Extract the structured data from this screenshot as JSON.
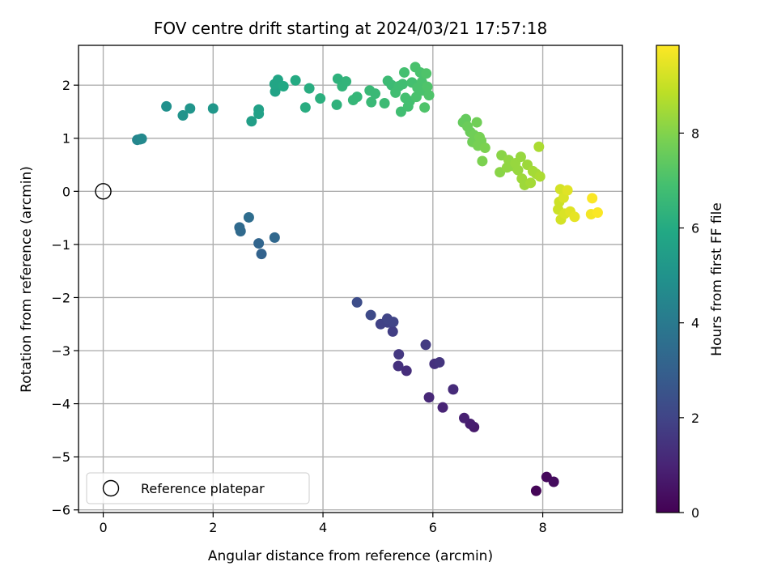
{
  "chart_data": {
    "type": "scatter",
    "title": "FOV centre drift starting at 2024/03/21 17:57:18",
    "xlabel": "Angular distance from reference (arcmin)",
    "ylabel": "Rotation from reference (arcmin)",
    "xlim": [
      -0.45,
      9.45
    ],
    "ylim": [
      -6.05,
      2.75
    ],
    "xticks": [
      0,
      2,
      4,
      6,
      8
    ],
    "yticks": [
      -6,
      -5,
      -4,
      -3,
      -2,
      -1,
      0,
      1,
      2
    ],
    "xtick_labels": [
      "0",
      "2",
      "4",
      "6",
      "8"
    ],
    "ytick_labels": [
      "−6",
      "−5",
      "−4",
      "−3",
      "−2",
      "−1",
      "0",
      "1",
      "2"
    ],
    "grid": true,
    "colormap": "viridis",
    "colorbar": {
      "label": "Hours from first FF file",
      "range": [
        0,
        9.85
      ],
      "ticks": [
        0,
        2,
        4,
        6,
        8
      ],
      "tick_labels": [
        "0",
        "2",
        "4",
        "6",
        "8"
      ]
    },
    "legend": {
      "position": "lower-left",
      "entries": [
        "Reference platepar"
      ]
    },
    "reference_point": {
      "x": 0,
      "y": 0,
      "marker": "open-circle",
      "name": "Reference platepar"
    },
    "series": [
      {
        "points": [
          {
            "x": 7.88,
            "y": -5.64,
            "hours": 0.1
          },
          {
            "x": 8.07,
            "y": -5.38,
            "hours": 0.2
          },
          {
            "x": 8.2,
            "y": -5.47,
            "hours": 0.3
          },
          {
            "x": 6.75,
            "y": -4.44,
            "hours": 0.7
          },
          {
            "x": 6.68,
            "y": -4.38,
            "hours": 0.8
          },
          {
            "x": 6.57,
            "y": -4.27,
            "hours": 0.9
          },
          {
            "x": 6.18,
            "y": -4.07,
            "hours": 1.0
          },
          {
            "x": 5.93,
            "y": -3.88,
            "hours": 1.1
          },
          {
            "x": 6.37,
            "y": -3.73,
            "hours": 1.2
          },
          {
            "x": 5.52,
            "y": -3.38,
            "hours": 1.3
          },
          {
            "x": 5.37,
            "y": -3.29,
            "hours": 1.4
          },
          {
            "x": 6.03,
            "y": -3.25,
            "hours": 1.4
          },
          {
            "x": 6.12,
            "y": -3.22,
            "hours": 1.5
          },
          {
            "x": 5.38,
            "y": -3.07,
            "hours": 1.6
          },
          {
            "x": 5.87,
            "y": -2.89,
            "hours": 1.7
          },
          {
            "x": 5.27,
            "y": -2.64,
            "hours": 1.8
          },
          {
            "x": 5.05,
            "y": -2.5,
            "hours": 1.9
          },
          {
            "x": 5.18,
            "y": -2.47,
            "hours": 1.9
          },
          {
            "x": 5.28,
            "y": -2.46,
            "hours": 2.0
          },
          {
            "x": 5.17,
            "y": -2.4,
            "hours": 2.0
          },
          {
            "x": 4.87,
            "y": -2.33,
            "hours": 2.2
          },
          {
            "x": 4.62,
            "y": -2.09,
            "hours": 2.3
          },
          {
            "x": 2.88,
            "y": -1.18,
            "hours": 3.1
          },
          {
            "x": 2.83,
            "y": -0.98,
            "hours": 3.2
          },
          {
            "x": 3.12,
            "y": -0.87,
            "hours": 3.3
          },
          {
            "x": 2.5,
            "y": -0.75,
            "hours": 3.4
          },
          {
            "x": 2.48,
            "y": -0.68,
            "hours": 3.4
          },
          {
            "x": 2.65,
            "y": -0.49,
            "hours": 3.5
          },
          {
            "x": 0.62,
            "y": 0.97,
            "hours": 4.5
          },
          {
            "x": 0.67,
            "y": 0.98,
            "hours": 4.5
          },
          {
            "x": 0.7,
            "y": 0.99,
            "hours": 4.6
          },
          {
            "x": 1.15,
            "y": 1.6,
            "hours": 4.9
          },
          {
            "x": 1.45,
            "y": 1.43,
            "hours": 5.0
          },
          {
            "x": 1.58,
            "y": 1.56,
            "hours": 5.1
          },
          {
            "x": 2.0,
            "y": 1.56,
            "hours": 5.2
          },
          {
            "x": 2.7,
            "y": 1.32,
            "hours": 5.5
          },
          {
            "x": 2.83,
            "y": 1.46,
            "hours": 5.6
          },
          {
            "x": 2.83,
            "y": 1.54,
            "hours": 5.6
          },
          {
            "x": 3.13,
            "y": 1.88,
            "hours": 5.7
          },
          {
            "x": 3.12,
            "y": 2.02,
            "hours": 5.8
          },
          {
            "x": 3.18,
            "y": 2.1,
            "hours": 5.8
          },
          {
            "x": 3.28,
            "y": 1.98,
            "hours": 5.9
          },
          {
            "x": 3.5,
            "y": 2.09,
            "hours": 6.0
          },
          {
            "x": 3.68,
            "y": 1.58,
            "hours": 6.1
          },
          {
            "x": 3.75,
            "y": 1.94,
            "hours": 6.1
          },
          {
            "x": 3.95,
            "y": 1.75,
            "hours": 6.2
          },
          {
            "x": 4.25,
            "y": 1.63,
            "hours": 6.3
          },
          {
            "x": 4.27,
            "y": 2.12,
            "hours": 6.3
          },
          {
            "x": 4.35,
            "y": 1.98,
            "hours": 6.4
          },
          {
            "x": 4.42,
            "y": 2.07,
            "hours": 6.4
          },
          {
            "x": 4.55,
            "y": 1.72,
            "hours": 6.5
          },
          {
            "x": 4.62,
            "y": 1.78,
            "hours": 6.5
          },
          {
            "x": 4.85,
            "y": 1.9,
            "hours": 6.6
          },
          {
            "x": 4.88,
            "y": 1.68,
            "hours": 6.6
          },
          {
            "x": 4.95,
            "y": 1.84,
            "hours": 6.6
          },
          {
            "x": 5.12,
            "y": 1.66,
            "hours": 6.7
          },
          {
            "x": 5.18,
            "y": 2.08,
            "hours": 6.7
          },
          {
            "x": 5.25,
            "y": 2.0,
            "hours": 6.7
          },
          {
            "x": 5.32,
            "y": 1.86,
            "hours": 6.8
          },
          {
            "x": 5.38,
            "y": 1.98,
            "hours": 6.8
          },
          {
            "x": 5.42,
            "y": 1.5,
            "hours": 6.8
          },
          {
            "x": 5.45,
            "y": 2.02,
            "hours": 6.8
          },
          {
            "x": 5.48,
            "y": 2.24,
            "hours": 6.9
          },
          {
            "x": 5.5,
            "y": 1.76,
            "hours": 6.9
          },
          {
            "x": 5.55,
            "y": 1.6,
            "hours": 6.9
          },
          {
            "x": 5.58,
            "y": 1.7,
            "hours": 6.9
          },
          {
            "x": 5.62,
            "y": 2.05,
            "hours": 6.9
          },
          {
            "x": 5.68,
            "y": 2.34,
            "hours": 7.0
          },
          {
            "x": 5.7,
            "y": 1.78,
            "hours": 7.0
          },
          {
            "x": 5.72,
            "y": 1.95,
            "hours": 7.0
          },
          {
            "x": 5.77,
            "y": 2.24,
            "hours": 7.0
          },
          {
            "x": 5.8,
            "y": 2.06,
            "hours": 7.0
          },
          {
            "x": 5.82,
            "y": 1.9,
            "hours": 7.0
          },
          {
            "x": 5.85,
            "y": 1.58,
            "hours": 7.1
          },
          {
            "x": 5.88,
            "y": 2.22,
            "hours": 7.1
          },
          {
            "x": 5.9,
            "y": 1.97,
            "hours": 7.1
          },
          {
            "x": 5.93,
            "y": 1.81,
            "hours": 7.1
          },
          {
            "x": 6.55,
            "y": 1.3,
            "hours": 7.5
          },
          {
            "x": 6.6,
            "y": 1.36,
            "hours": 7.5
          },
          {
            "x": 6.63,
            "y": 1.22,
            "hours": 7.6
          },
          {
            "x": 6.68,
            "y": 1.12,
            "hours": 7.6
          },
          {
            "x": 6.72,
            "y": 0.93,
            "hours": 7.7
          },
          {
            "x": 6.75,
            "y": 1.06,
            "hours": 7.7
          },
          {
            "x": 6.8,
            "y": 1.3,
            "hours": 7.7
          },
          {
            "x": 6.82,
            "y": 0.86,
            "hours": 7.8
          },
          {
            "x": 6.85,
            "y": 1.02,
            "hours": 7.8
          },
          {
            "x": 6.88,
            "y": 0.95,
            "hours": 7.8
          },
          {
            "x": 6.9,
            "y": 0.57,
            "hours": 7.9
          },
          {
            "x": 6.95,
            "y": 0.82,
            "hours": 7.9
          },
          {
            "x": 7.22,
            "y": 0.36,
            "hours": 8.1
          },
          {
            "x": 7.25,
            "y": 0.68,
            "hours": 8.1
          },
          {
            "x": 7.35,
            "y": 0.45,
            "hours": 8.2
          },
          {
            "x": 7.38,
            "y": 0.59,
            "hours": 8.2
          },
          {
            "x": 7.45,
            "y": 0.48,
            "hours": 8.2
          },
          {
            "x": 7.5,
            "y": 0.53,
            "hours": 8.3
          },
          {
            "x": 7.55,
            "y": 0.4,
            "hours": 8.3
          },
          {
            "x": 7.6,
            "y": 0.65,
            "hours": 8.3
          },
          {
            "x": 7.62,
            "y": 0.24,
            "hours": 8.4
          },
          {
            "x": 7.67,
            "y": 0.12,
            "hours": 8.4
          },
          {
            "x": 7.72,
            "y": 0.5,
            "hours": 8.4
          },
          {
            "x": 7.78,
            "y": 0.16,
            "hours": 8.5
          },
          {
            "x": 7.82,
            "y": 0.38,
            "hours": 8.5
          },
          {
            "x": 7.88,
            "y": 0.33,
            "hours": 8.5
          },
          {
            "x": 7.93,
            "y": 0.84,
            "hours": 8.6
          },
          {
            "x": 7.95,
            "y": 0.28,
            "hours": 8.6
          },
          {
            "x": 8.28,
            "y": -0.34,
            "hours": 9.1
          },
          {
            "x": 8.3,
            "y": -0.2,
            "hours": 9.1
          },
          {
            "x": 8.32,
            "y": 0.04,
            "hours": 9.2
          },
          {
            "x": 8.33,
            "y": -0.53,
            "hours": 9.2
          },
          {
            "x": 8.38,
            "y": -0.12,
            "hours": 9.3
          },
          {
            "x": 8.4,
            "y": -0.42,
            "hours": 9.3
          },
          {
            "x": 8.45,
            "y": 0.02,
            "hours": 9.4
          },
          {
            "x": 8.5,
            "y": -0.38,
            "hours": 9.4
          },
          {
            "x": 8.58,
            "y": -0.48,
            "hours": 9.5
          },
          {
            "x": 8.88,
            "y": -0.43,
            "hours": 9.7
          },
          {
            "x": 8.9,
            "y": -0.13,
            "hours": 9.8
          },
          {
            "x": 9.0,
            "y": -0.4,
            "hours": 9.8
          }
        ]
      }
    ]
  }
}
